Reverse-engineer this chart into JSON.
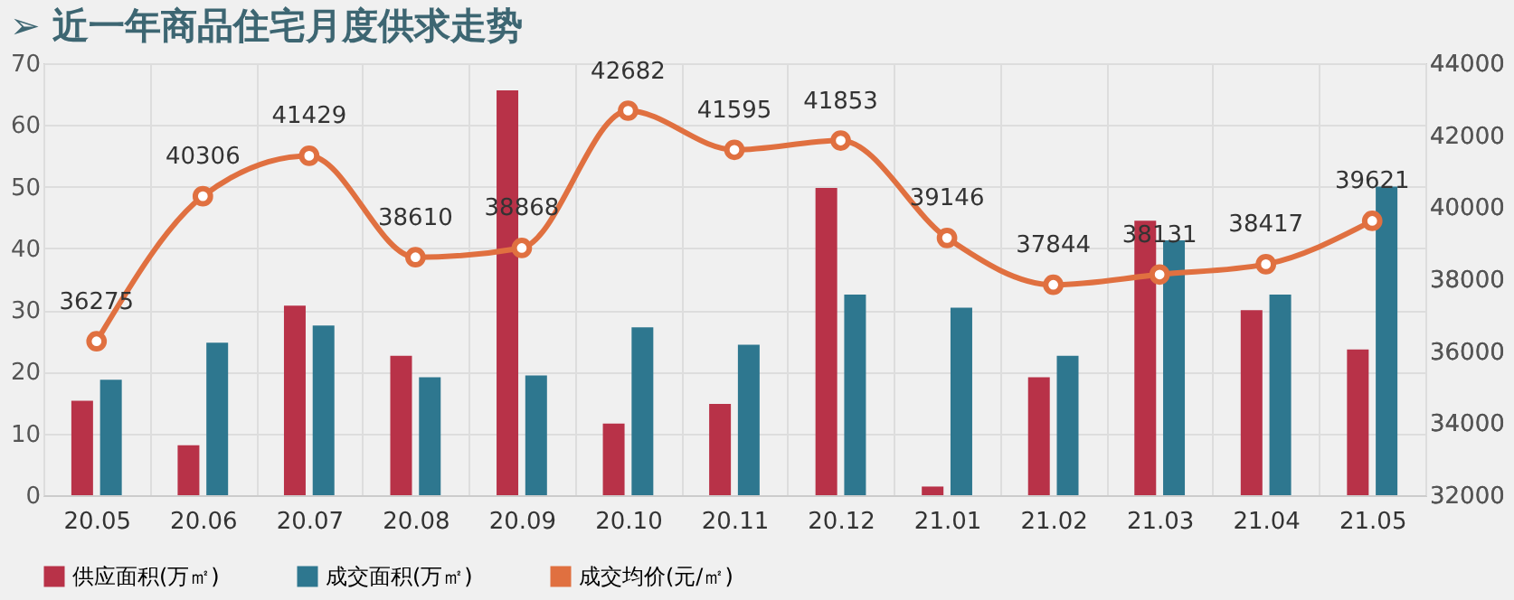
{
  "chart_data": {
    "type": "bar",
    "title": "➢ 近一年商品住宅月度供求走势",
    "categories": [
      "20.05",
      "20.06",
      "20.07",
      "20.08",
      "20.09",
      "20.10",
      "20.11",
      "20.12",
      "21.01",
      "21.02",
      "21.03",
      "21.04",
      "21.05"
    ],
    "series": [
      {
        "name": "供应面积(万㎡)",
        "color": "#b83248",
        "values": [
          15.3,
          8.1,
          30.7,
          22.6,
          65.6,
          11.6,
          14.8,
          49.8,
          1.4,
          19.1,
          44.5,
          30,
          23.6
        ]
      },
      {
        "name": "成交面积(万㎡)",
        "color": "#2e778f",
        "values": [
          18.7,
          24.7,
          27.5,
          19.1,
          19.4,
          27.2,
          24.4,
          32.5,
          30.4,
          22.6,
          41.3,
          32.5,
          50
        ]
      },
      {
        "name": "成交均价(元/㎡)",
        "color": "#e07040",
        "type": "line",
        "axis": "y2",
        "marker": "circle",
        "data_labels": true,
        "values": [
          36275,
          40306,
          41429,
          38610,
          38868,
          42682,
          41595,
          41853,
          39146,
          37844,
          38131,
          38417,
          39621
        ]
      }
    ],
    "ylim": [
      0,
      70
    ],
    "yticks": [
      0,
      10,
      20,
      30,
      40,
      50,
      60,
      70
    ],
    "y2lim": [
      32000,
      44000
    ],
    "y2ticks": [
      32000,
      34000,
      36000,
      38000,
      40000,
      42000,
      44000
    ],
    "grid": true,
    "legend": "bottom"
  }
}
